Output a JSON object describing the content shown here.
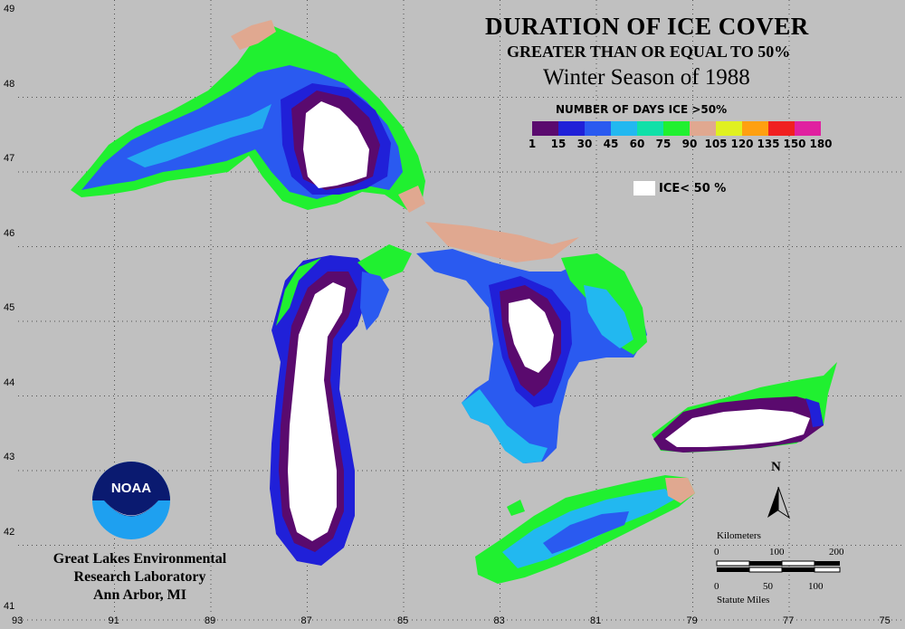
{
  "title": "DURATION OF ICE COVER",
  "subtitle": "GREATER THAN OR EQUAL TO 50%",
  "season": "Winter Season of 1988",
  "legend": {
    "title": "NUMBER OF DAYS ICE >50%",
    "colors": [
      "#5a0a6e",
      "#2020d8",
      "#2a5af0",
      "#22b8f0",
      "#10e0a8",
      "#20f030",
      "#e0a890",
      "#e0f020",
      "#ffa010",
      "#f02020",
      "#e020a0"
    ],
    "ticks": [
      "1",
      "15",
      "30",
      "45",
      "60",
      "75",
      "90",
      "105",
      "120",
      "135",
      "150",
      "180"
    ]
  },
  "ice_note": "ICE< 50 %",
  "organization": [
    "Great Lakes Environmental",
    "Research Laboratory",
    "Ann Arbor, MI"
  ],
  "logo_text": "NOAA",
  "north_label": "N",
  "scale": {
    "km_label": "Kilometers",
    "km_ticks": [
      "0",
      "100",
      "200"
    ],
    "mi_ticks": [
      "0",
      "50",
      "100"
    ],
    "mi_label": "Statute Miles"
  },
  "axes": {
    "longitude": [
      "93",
      "91",
      "89",
      "87",
      "85",
      "83",
      "81",
      "79",
      "77",
      "75"
    ],
    "latitude": [
      "49",
      "48",
      "47",
      "46",
      "45",
      "44",
      "43",
      "42",
      "41"
    ]
  }
}
